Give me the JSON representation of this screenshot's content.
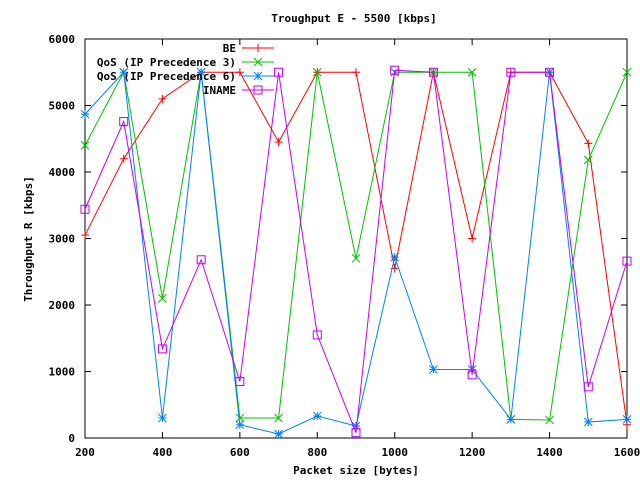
{
  "chart_data": {
    "type": "line",
    "title": "Troughput E - 5500 [kbps]",
    "xlabel": "Packet size [bytes]",
    "ylabel": "Throughput R [kbps]",
    "xlim": [
      200,
      1600
    ],
    "ylim": [
      0,
      6000
    ],
    "x_ticks": [
      200,
      400,
      600,
      800,
      1000,
      1200,
      1400,
      1600
    ],
    "y_ticks": [
      0,
      1000,
      2000,
      3000,
      4000,
      5000,
      6000
    ],
    "grid": false,
    "legend_position": "top-left-inside",
    "x": [
      200,
      300,
      400,
      500,
      600,
      700,
      800,
      900,
      1000,
      1100,
      1200,
      1300,
      1400,
      1500,
      1600
    ],
    "series": [
      {
        "name": "BE",
        "color": "#ff0000",
        "marker": "plus",
        "values": [
          3050,
          4200,
          5100,
          5500,
          5500,
          4450,
          5500,
          5500,
          2550,
          5500,
          3000,
          5500,
          5500,
          4430,
          200
        ]
      },
      {
        "name": "QoS (IP Precedence 3)",
        "color": "#00c000",
        "marker": "cross",
        "values": [
          4400,
          5500,
          2100,
          5500,
          300,
          300,
          5500,
          2700,
          5500,
          5500,
          5500,
          280,
          270,
          4180,
          5500
        ]
      },
      {
        "name": "QoS (IP Precedence 6)",
        "color": "#0080ff",
        "marker": "star",
        "values": [
          4870,
          5500,
          300,
          5500,
          200,
          60,
          330,
          180,
          2720,
          1030,
          1030,
          280,
          5500,
          240,
          280
        ]
      },
      {
        "name": "INAME",
        "color": "#c000ff",
        "marker": "square",
        "values": [
          3440,
          4760,
          1340,
          2680,
          850,
          5500,
          1550,
          80,
          5530,
          5500,
          950,
          5500,
          5500,
          770,
          2660
        ]
      }
    ]
  }
}
